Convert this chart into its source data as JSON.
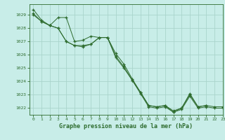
{
  "title": "Graphe pression niveau de la mer (hPa)",
  "bg_color": "#c8ede8",
  "grid_color": "#aad4cc",
  "line_color": "#2d6b2d",
  "marker": "+",
  "xlim": [
    -0.5,
    23
  ],
  "ylim": [
    1021.5,
    1029.8
  ],
  "yticks": [
    1022,
    1023,
    1024,
    1025,
    1026,
    1027,
    1028,
    1029
  ],
  "xticks": [
    0,
    1,
    2,
    3,
    4,
    5,
    6,
    7,
    8,
    9,
    10,
    11,
    12,
    13,
    14,
    15,
    16,
    17,
    18,
    19,
    20,
    21,
    22,
    23
  ],
  "series": [
    {
      "x": [
        0,
        1,
        2,
        3,
        4,
        5,
        6,
        7,
        8,
        9,
        10,
        11,
        12,
        13,
        14,
        15,
        16,
        17,
        18,
        19,
        20,
        21
      ],
      "y": [
        1029.4,
        1028.6,
        1028.2,
        1028.8,
        1028.8,
        1027.0,
        1027.1,
        1027.4,
        1027.3,
        1027.3,
        1026.1,
        1025.3,
        1024.2,
        1023.2,
        1022.2,
        1022.1,
        1022.2,
        1021.8,
        1022.0,
        1023.1,
        1022.1,
        1022.2
      ]
    },
    {
      "x": [
        0,
        1,
        2,
        3,
        4,
        5,
        6,
        7,
        8,
        9,
        10,
        11,
        12,
        13,
        14,
        15,
        16,
        17,
        18,
        19,
        20,
        21,
        22,
        23
      ],
      "y": [
        1029.1,
        1028.5,
        1028.2,
        1028.0,
        1027.0,
        1026.7,
        1026.7,
        1026.8,
        1027.3,
        1027.3,
        1025.9,
        1025.1,
        1024.1,
        1023.2,
        1022.2,
        1022.1,
        1022.2,
        1021.7,
        1022.0,
        1023.0,
        1022.1,
        1022.2,
        1022.1,
        1022.1
      ]
    },
    {
      "x": [
        0,
        1,
        2,
        3,
        4,
        5,
        6,
        7,
        8,
        9,
        10,
        11,
        12,
        13,
        14,
        15,
        16,
        17,
        18,
        19,
        20,
        21,
        22,
        23
      ],
      "y": [
        1029.0,
        1028.5,
        1028.2,
        1028.0,
        1027.0,
        1026.7,
        1026.6,
        1026.8,
        1027.3,
        1027.3,
        1025.8,
        1025.0,
        1024.1,
        1023.1,
        1022.1,
        1022.0,
        1022.1,
        1021.7,
        1021.9,
        1022.9,
        1022.0,
        1022.1,
        1022.0,
        1022.0
      ]
    }
  ]
}
